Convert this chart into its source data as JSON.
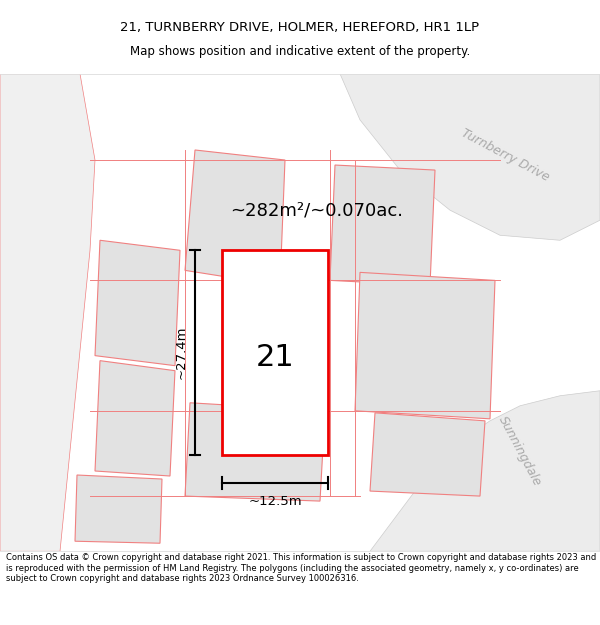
{
  "title": "21, TURNBERRY DRIVE, HOLMER, HEREFORD, HR1 1LP",
  "subtitle": "Map shows position and indicative extent of the property.",
  "area_label": "~282m²/~0.070ac.",
  "number_label": "21",
  "width_label": "~12.5m",
  "height_label": "~27.4m",
  "road_label_1": "Turnberry Drive",
  "road_label_2": "Sunningdale",
  "footer": "Contains OS data © Crown copyright and database right 2021. This information is subject to Crown copyright and database rights 2023 and is reproduced with the permission of HM Land Registry. The polygons (including the associated geometry, namely x, y co-ordinates) are subject to Crown copyright and database rights 2023 Ordnance Survey 100026316.",
  "bg_color": "#ffffff",
  "map_bg": "#f7f7f7",
  "plot_fill": "#ffffff",
  "plot_edge": "#ee0000",
  "neighbor_fill": "#e2e2e2",
  "neighbor_edge": "#f08080",
  "road_band": "#e8e8e8",
  "road_label_color": "#aaaaaa"
}
